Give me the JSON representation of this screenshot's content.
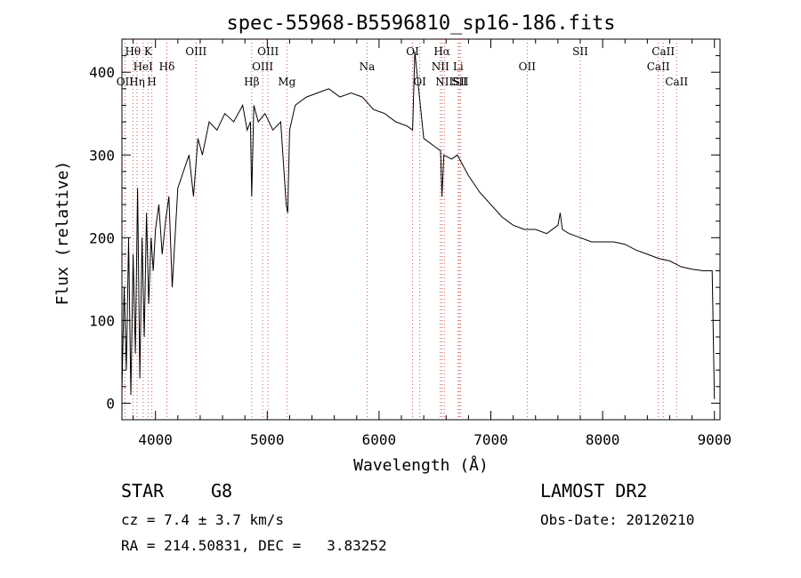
{
  "chart_data": {
    "type": "line",
    "title": "spec-55968-B5596810_sp16-186.fits",
    "xlabel": "Wavelength (Å)",
    "ylabel": "Flux (relative)",
    "xlim": [
      3700,
      9050
    ],
    "ylim": [
      -20,
      440
    ],
    "x_ticks": [
      "4000",
      "5000",
      "6000",
      "7000",
      "8000",
      "9000"
    ],
    "y_ticks": [
      "0",
      "100",
      "200",
      "300",
      "400"
    ],
    "grid": false,
    "series": [
      {
        "x": [
          3700,
          3720,
          3740,
          3760,
          3780,
          3800,
          3820,
          3840,
          3860,
          3880,
          3900,
          3920,
          3940,
          3960,
          3980,
          4000,
          4030,
          4060,
          4090,
          4120,
          4150,
          4200,
          4250,
          4300,
          4340,
          4380,
          4420,
          4480,
          4550,
          4620,
          4700,
          4780,
          4820,
          4850,
          4861,
          4880,
          4920,
          4980,
          5050,
          5120,
          5170,
          5183,
          5200,
          5250,
          5350,
          5450,
          5550,
          5650,
          5750,
          5850,
          5950,
          6050,
          6150,
          6250,
          6300,
          6320,
          6400,
          6500,
          6550,
          6563,
          6580,
          6650,
          6700,
          6800,
          6900,
          7000,
          7100,
          7200,
          7300,
          7400,
          7500,
          7600,
          7620,
          7640,
          7700,
          7800,
          7900,
          8000,
          8100,
          8200,
          8300,
          8400,
          8500,
          8600,
          8700,
          8800,
          8900,
          8980,
          9000
        ],
        "y": [
          15,
          140,
          40,
          200,
          10,
          180,
          60,
          260,
          30,
          200,
          80,
          230,
          120,
          200,
          160,
          210,
          240,
          180,
          220,
          250,
          140,
          260,
          280,
          300,
          250,
          320,
          300,
          340,
          330,
          350,
          340,
          360,
          330,
          340,
          250,
          360,
          340,
          350,
          330,
          340,
          240,
          230,
          330,
          360,
          370,
          375,
          380,
          370,
          375,
          370,
          355,
          350,
          340,
          335,
          330,
          425,
          320,
          310,
          305,
          250,
          300,
          295,
          300,
          275,
          255,
          240,
          225,
          215,
          210,
          210,
          205,
          215,
          230,
          210,
          205,
          200,
          195,
          195,
          195,
          192,
          185,
          180,
          175,
          172,
          165,
          162,
          160,
          160,
          5
        ]
      }
    ],
    "line_markers": [
      {
        "label": "Hθ",
        "x": 3798,
        "row": 0
      },
      {
        "label": "K",
        "x": 3934,
        "row": 0
      },
      {
        "label": "OII",
        "x": 3727,
        "row": 2
      },
      {
        "label": "Hη",
        "x": 3835,
        "row": 2
      },
      {
        "label": "HeI",
        "x": 3889,
        "row": 1
      },
      {
        "label": "H",
        "x": 3968,
        "row": 2
      },
      {
        "label": "Hδ",
        "x": 4102,
        "row": 1
      },
      {
        "label": "OIII",
        "x": 4363,
        "row": 0
      },
      {
        "label": "Hβ",
        "x": 4861,
        "row": 2
      },
      {
        "label": "OIII",
        "x": 4959,
        "row": 1
      },
      {
        "label": "OIII",
        "x": 5007,
        "row": 0
      },
      {
        "label": "Mg",
        "x": 5175,
        "row": 2
      },
      {
        "label": "Na",
        "x": 5893,
        "row": 1
      },
      {
        "label": "OI",
        "x": 6300,
        "row": 0
      },
      {
        "label": "OI",
        "x": 6364,
        "row": 2
      },
      {
        "label": "Hα",
        "x": 6563,
        "row": 0
      },
      {
        "label": "NII",
        "x": 6548,
        "row": 1
      },
      {
        "label": "NII",
        "x": 6584,
        "row": 2
      },
      {
        "label": "Li",
        "x": 6708,
        "row": 1
      },
      {
        "label": "SII",
        "x": 6717,
        "row": 2
      },
      {
        "label": "SII",
        "x": 6731,
        "row": 2
      },
      {
        "label": "OII",
        "x": 7325,
        "row": 1
      },
      {
        "label": "SII",
        "x": 7800,
        "row": 0
      },
      {
        "label": "CaII",
        "x": 8498,
        "row": 1
      },
      {
        "label": "CaII",
        "x": 8542,
        "row": 0
      },
      {
        "label": "CaII",
        "x": 8662,
        "row": 2
      }
    ]
  },
  "info": {
    "class_label": "STAR",
    "subclass": "G8",
    "survey": "LAMOST DR2",
    "velocity": "cz = 7.4 ± 3.7 km/s",
    "obs_date": "Obs-Date: 20120210",
    "coords": "RA = 214.50831, DEC =   3.83252"
  }
}
